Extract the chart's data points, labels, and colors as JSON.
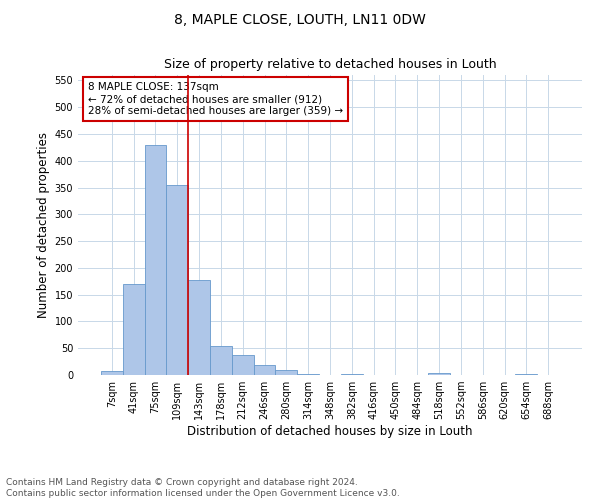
{
  "title_line1": "8, MAPLE CLOSE, LOUTH, LN11 0DW",
  "title_line2": "Size of property relative to detached houses in Louth",
  "xlabel": "Distribution of detached houses by size in Louth",
  "ylabel": "Number of detached properties",
  "bar_labels": [
    "7sqm",
    "41sqm",
    "75sqm",
    "109sqm",
    "143sqm",
    "178sqm",
    "212sqm",
    "246sqm",
    "280sqm",
    "314sqm",
    "348sqm",
    "382sqm",
    "416sqm",
    "450sqm",
    "484sqm",
    "518sqm",
    "552sqm",
    "586sqm",
    "620sqm",
    "654sqm",
    "688sqm"
  ],
  "bar_values": [
    8,
    170,
    430,
    355,
    178,
    55,
    38,
    18,
    9,
    2,
    0,
    1,
    0,
    0,
    0,
    3,
    0,
    0,
    0,
    2,
    0
  ],
  "bar_color": "#aec6e8",
  "bar_edge_color": "#6699cc",
  "vline_x": 3.5,
  "vline_color": "#cc0000",
  "annotation_text": "8 MAPLE CLOSE: 137sqm\n← 72% of detached houses are smaller (912)\n28% of semi-detached houses are larger (359) →",
  "annotation_box_color": "#ffffff",
  "annotation_border_color": "#cc0000",
  "ylim": [
    0,
    560
  ],
  "yticks": [
    0,
    50,
    100,
    150,
    200,
    250,
    300,
    350,
    400,
    450,
    500,
    550
  ],
  "footer_text": "Contains HM Land Registry data © Crown copyright and database right 2024.\nContains public sector information licensed under the Open Government Licence v3.0.",
  "background_color": "#ffffff",
  "grid_color": "#c8d8e8",
  "title_fontsize": 10,
  "subtitle_fontsize": 9,
  "axis_label_fontsize": 8.5,
  "tick_fontsize": 7,
  "annotation_fontsize": 7.5,
  "footer_fontsize": 6.5
}
